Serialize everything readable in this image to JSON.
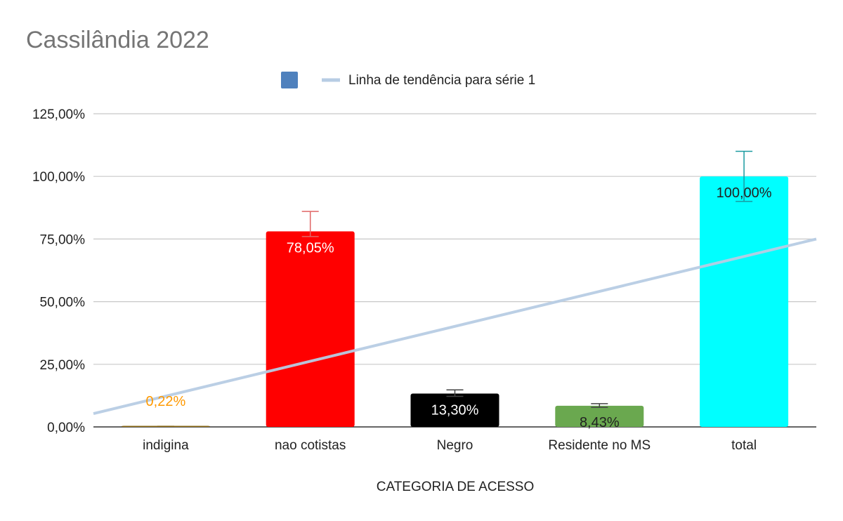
{
  "chart_data": {
    "type": "bar",
    "title": "Cassilândia  2022",
    "xlabel": "CATEGORIA  DE ACESSO",
    "ylabel": "",
    "categories": [
      "indigina",
      "nao cotistas",
      "Negro",
      "Residente no MS",
      "total"
    ],
    "series": [
      {
        "values": [
          0.22,
          78.05,
          13.3,
          8.43,
          100.0
        ],
        "labels": [
          "0,22%",
          "78,05%",
          "13,30%",
          "8,43%",
          "100,00%"
        ],
        "colors": [
          "#8B6914",
          "#FF0000",
          "#000000",
          "#6AA84F",
          "#00FFFF"
        ],
        "label_colors": [
          "#FF9900",
          "#FFFFFF",
          "#FFFFFF",
          "#222222",
          "#222222"
        ],
        "error_colors": [
          "#8B6914",
          "#E06666",
          "#444444",
          "#444444",
          "#1A9AA0"
        ],
        "error_upper": [
          0.25,
          86.0,
          14.8,
          9.3,
          110.0
        ],
        "error_lower": [
          0.2,
          76.0,
          12.2,
          7.8,
          90.0
        ]
      }
    ],
    "trendline": {
      "name": "Linha de tendência para série 1",
      "color": "#B7CCE4",
      "y_at_left_edge": 5.3,
      "y_at_right_edge": 75.0
    },
    "yticks": [
      "0,00%",
      "25,00%",
      "50,00%",
      "75,00%",
      "100,00%",
      "125,00%"
    ],
    "ytick_values": [
      0,
      25,
      50,
      75,
      100,
      125
    ],
    "ylim": [
      0,
      125
    ],
    "grid": true,
    "legend": {
      "position": "top",
      "series_swatch_color": "#4F81BD",
      "series_label": ""
    }
  }
}
